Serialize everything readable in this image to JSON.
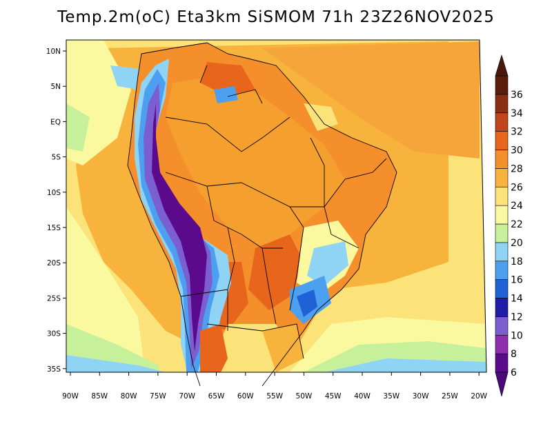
{
  "title": "Temp.2m(oC) Eta3km SiSMOM 71h 23Z26NOV2025",
  "map": {
    "lat_ticks": [
      "10N",
      "5N",
      "EQ",
      "5S",
      "10S",
      "15S",
      "20S",
      "25S",
      "30S",
      "35S"
    ],
    "lon_ticks": [
      "90W",
      "85W",
      "80W",
      "75W",
      "70W",
      "65W",
      "60W",
      "55W",
      "50W",
      "45W",
      "40W",
      "35W",
      "30W",
      "25W",
      "20W"
    ]
  },
  "colorbar": {
    "labels": [
      "6",
      "8",
      "10",
      "12",
      "14",
      "16",
      "18",
      "20",
      "22",
      "24",
      "26",
      "28",
      "30",
      "32",
      "34",
      "36"
    ],
    "colors": [
      "#5a0a8a",
      "#8e2fb0",
      "#7b5fd1",
      "#1d1da8",
      "#1f62d6",
      "#4d9ff0",
      "#8fd4f5",
      "#c6f09a",
      "#fbf9a0",
      "#fbe37a",
      "#f7b33c",
      "#f58f2c",
      "#e8661c",
      "#c0451b",
      "#8a2e14",
      "#5a1d0c"
    ]
  }
}
